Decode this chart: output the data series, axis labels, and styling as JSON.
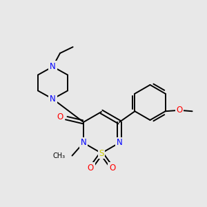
{
  "background_color": "#e8e8e8",
  "atom_colors": {
    "C": "#000000",
    "N": "#0000ff",
    "O": "#ff0000",
    "S": "#cccc00"
  },
  "figsize": [
    3.0,
    3.0
  ],
  "dpi": 100,
  "lw": 1.4,
  "fs": 8.5
}
